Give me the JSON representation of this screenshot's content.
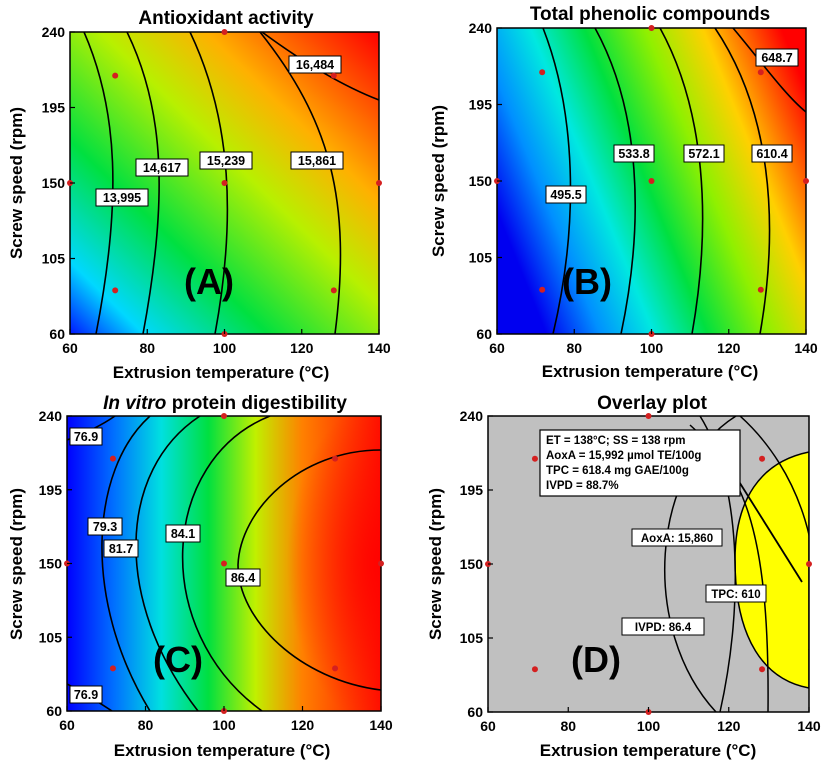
{
  "chart_data": [
    {
      "type": "heatmap",
      "panel": "(A)",
      "title": "Antioxidant activity",
      "xlabel": "Extrusion temperature (°C)",
      "ylabel": "Screw speed (rpm)",
      "xlim": [
        60,
        140
      ],
      "ylim": [
        60,
        240
      ],
      "xticks": [
        "60",
        "80",
        "100",
        "120",
        "140"
      ],
      "yticks": [
        "60",
        "105",
        "150",
        "195",
        "240"
      ],
      "colormap": [
        "#0000ff",
        "#00ffff",
        "#00ff00",
        "#ffff00",
        "#ff0000"
      ],
      "contours": [
        {
          "label": "13,995",
          "value": 13995
        },
        {
          "label": "14,617",
          "value": 14617
        },
        {
          "label": "15,239",
          "value": 15239
        },
        {
          "label": "15,861",
          "value": 15861
        },
        {
          "label": "16,484",
          "value": 16484
        }
      ],
      "design_points": [
        [
          60,
          150
        ],
        [
          71.7,
          214
        ],
        [
          71.7,
          86
        ],
        [
          100,
          240
        ],
        [
          100,
          150
        ],
        [
          100,
          60
        ],
        [
          128.3,
          214
        ],
        [
          128.3,
          86
        ],
        [
          140,
          150
        ]
      ]
    },
    {
      "type": "heatmap",
      "panel": "(B)",
      "title": "Total phenolic compounds",
      "xlabel": "Extrusion temperature (°C)",
      "ylabel": "Screw speed (rpm)",
      "xlim": [
        60,
        140
      ],
      "ylim": [
        60,
        240
      ],
      "xticks": [
        "60",
        "80",
        "100",
        "120",
        "140"
      ],
      "yticks": [
        "60",
        "105",
        "150",
        "195",
        "240"
      ],
      "colormap": [
        "#0000ff",
        "#00ffff",
        "#00ff00",
        "#ffff00",
        "#ff0000"
      ],
      "contours": [
        {
          "label": "495.5",
          "value": 495.5
        },
        {
          "label": "533.8",
          "value": 533.8
        },
        {
          "label": "572.1",
          "value": 572.1
        },
        {
          "label": "610.4",
          "value": 610.4
        },
        {
          "label": "648.7",
          "value": 648.7
        }
      ],
      "design_points": [
        [
          60,
          150
        ],
        [
          71.7,
          214
        ],
        [
          71.7,
          86
        ],
        [
          100,
          240
        ],
        [
          100,
          150
        ],
        [
          100,
          60
        ],
        [
          128.3,
          214
        ],
        [
          128.3,
          86
        ],
        [
          140,
          150
        ]
      ]
    },
    {
      "type": "heatmap",
      "panel": "(C)",
      "title_italic": "In vitro",
      "title": "protein digestibility",
      "xlabel": "Extrusion temperature (°C)",
      "ylabel": "Screw speed (rpm)",
      "xlim": [
        60,
        140
      ],
      "ylim": [
        60,
        240
      ],
      "xticks": [
        "60",
        "80",
        "100",
        "120",
        "140"
      ],
      "yticks": [
        "60",
        "105",
        "150",
        "195",
        "240"
      ],
      "colormap": [
        "#0000ff",
        "#00ffff",
        "#00ff00",
        "#ffff00",
        "#ff0000"
      ],
      "contours": [
        {
          "label": "76.9",
          "value": 76.9
        },
        {
          "label": "79.3",
          "value": 79.3
        },
        {
          "label": "81.7",
          "value": 81.7
        },
        {
          "label": "84.1",
          "value": 84.1
        },
        {
          "label": "86.4",
          "value": 86.4
        }
      ],
      "design_points": [
        [
          60,
          150
        ],
        [
          71.7,
          214
        ],
        [
          71.7,
          86
        ],
        [
          100,
          240
        ],
        [
          100,
          150
        ],
        [
          100,
          60
        ],
        [
          128.3,
          214
        ],
        [
          128.3,
          86
        ],
        [
          140,
          150
        ]
      ]
    },
    {
      "type": "overlay",
      "panel": "(D)",
      "title": "Overlay plot",
      "xlabel": "Extrusion temperature (°C)",
      "ylabel": "Screw speed (rpm)",
      "xlim": [
        60,
        140
      ],
      "ylim": [
        60,
        240
      ],
      "xticks": [
        "60",
        "80",
        "100",
        "120",
        "140"
      ],
      "yticks": [
        "60",
        "105",
        "150",
        "195",
        "240"
      ],
      "colors": {
        "background": "#c0c0c0",
        "feasible": "#ffff00"
      },
      "constraint_labels": [
        "AoxA: 15,860",
        "TPC: 610",
        "IVPD: 86.4"
      ],
      "optimum_box": [
        "ET = 138°C; SS = 138 rpm",
        "AoxA = 15,992 µmol TE/100g",
        "TPC = 618.4 mg GAE/100g",
        "IVPD = 88.7%"
      ],
      "optimum_point": [
        138,
        138
      ],
      "design_points": [
        [
          60,
          150
        ],
        [
          71.7,
          214
        ],
        [
          71.7,
          86
        ],
        [
          100,
          240
        ],
        [
          100,
          60
        ],
        [
          128.3,
          214
        ],
        [
          128.3,
          86
        ],
        [
          140,
          150
        ]
      ]
    }
  ]
}
